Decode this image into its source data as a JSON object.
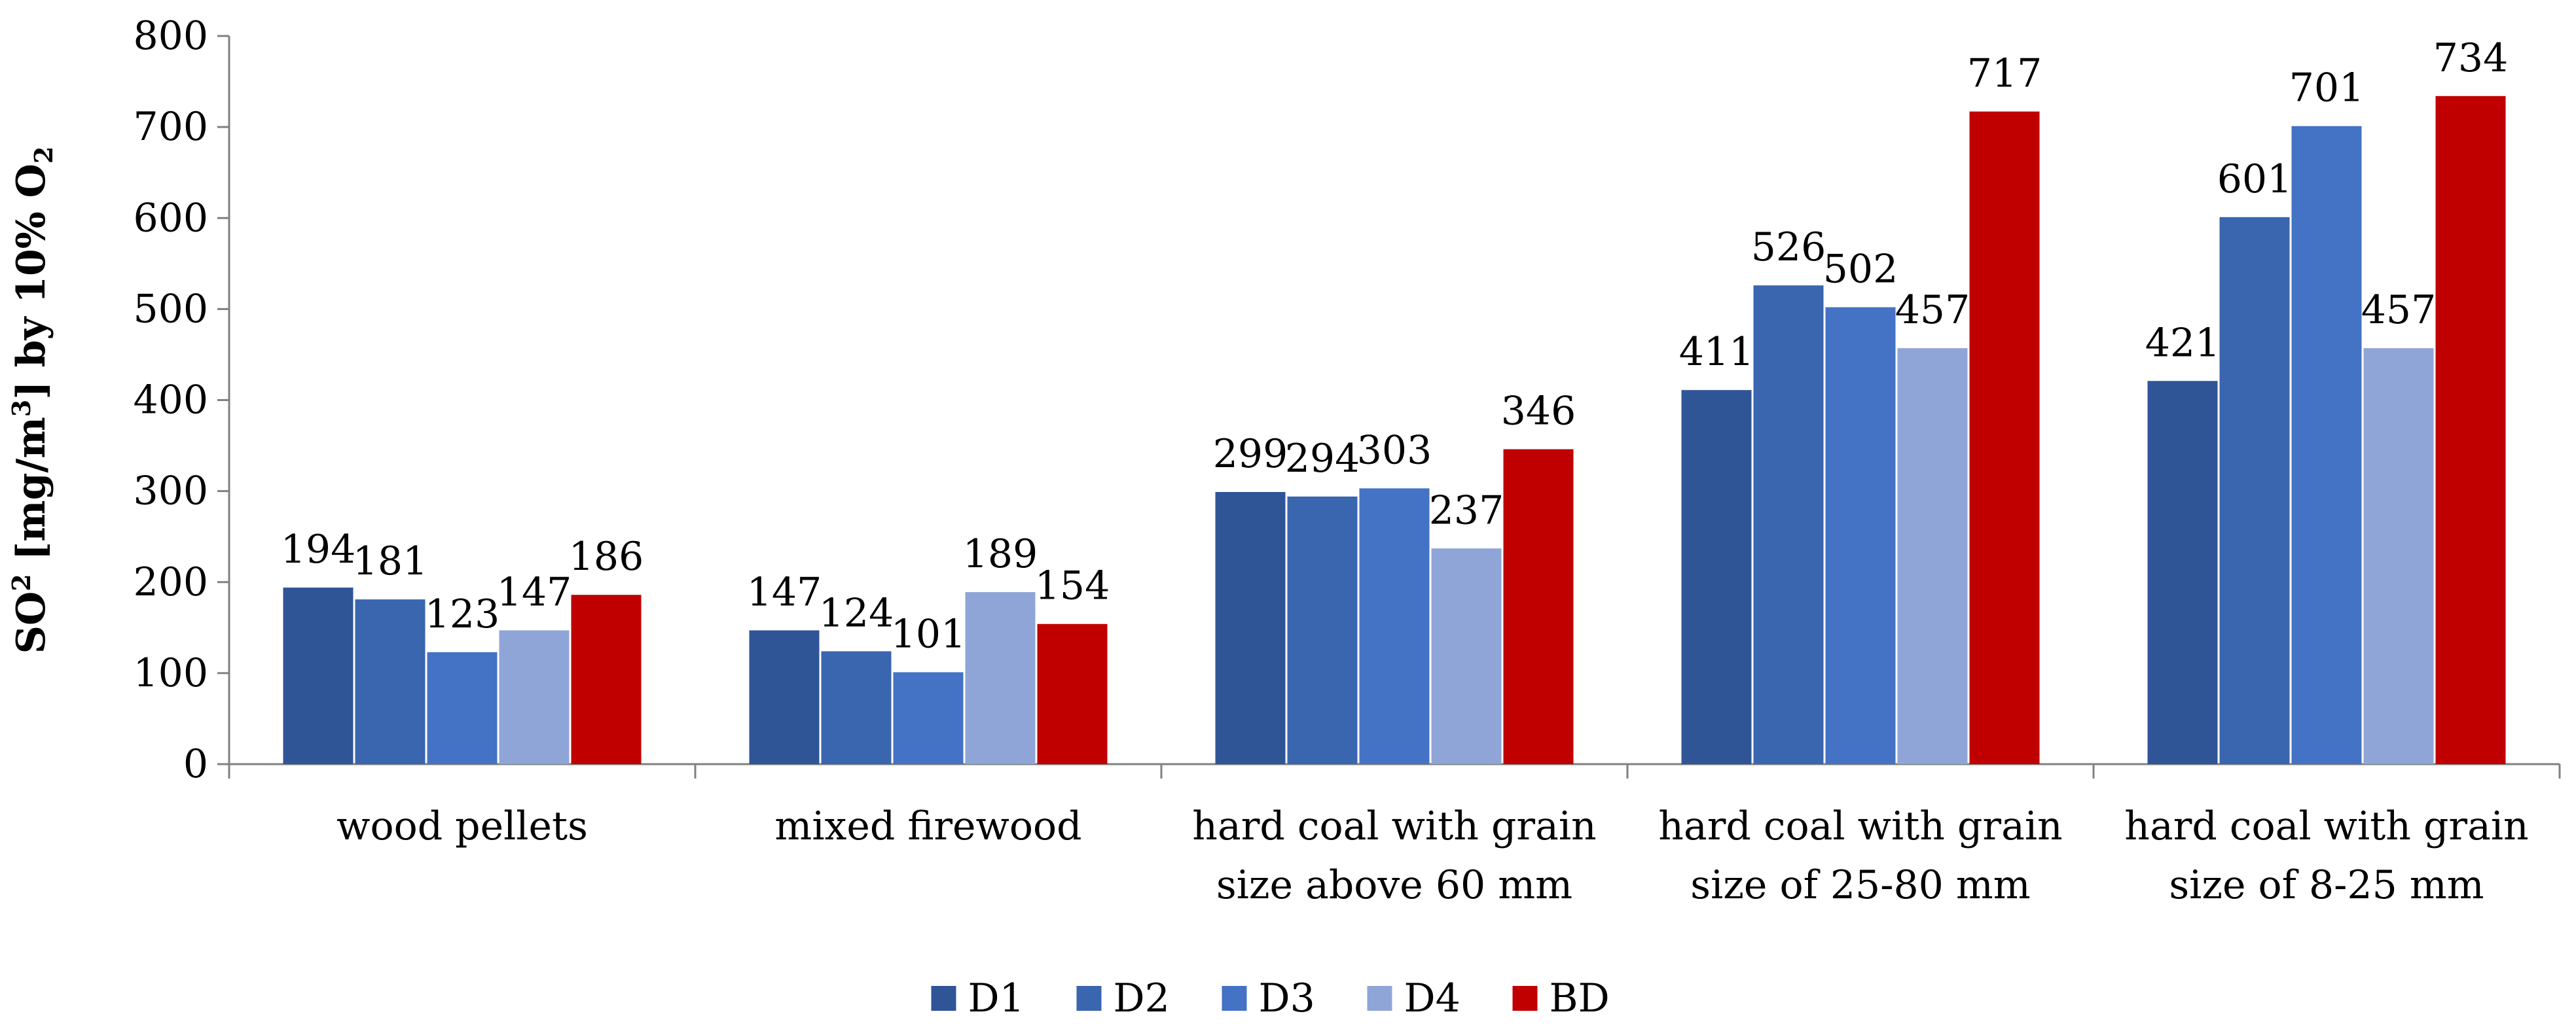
{
  "chart_data": {
    "type": "bar",
    "title": "",
    "ylabel": {
      "parts": [
        {
          "text": "SO",
          "style": "normal"
        },
        {
          "text": "2",
          "style": "super"
        },
        {
          "text": " [mg/m",
          "style": "normal"
        },
        {
          "text": "3",
          "style": "super"
        },
        {
          "text": "] by 10% O",
          "style": "normal"
        },
        {
          "text": "2",
          "style": "sub"
        }
      ]
    },
    "xlabel": "",
    "ylim": [
      0,
      800
    ],
    "yticks": [
      "0",
      "100",
      "200",
      "300",
      "400",
      "500",
      "600",
      "700",
      "800"
    ],
    "categories": [
      [
        "wood pellets"
      ],
      [
        "mixed firewood"
      ],
      [
        "hard coal with grain",
        "size above 60 mm"
      ],
      [
        "hard coal with grain",
        "size of 25-80 mm"
      ],
      [
        "hard coal with grain",
        "size of 8-25 mm"
      ]
    ],
    "series": [
      {
        "name": "D1",
        "color": "#2F5597",
        "values": [
          194,
          147,
          299,
          411,
          421
        ]
      },
      {
        "name": "D2",
        "color": "#3A65AF",
        "values": [
          181,
          124,
          294,
          526,
          601
        ]
      },
      {
        "name": "D3",
        "color": "#4472C4",
        "values": [
          123,
          101,
          303,
          502,
          701
        ]
      },
      {
        "name": "D4",
        "color": "#8FA5D7",
        "values": [
          147,
          189,
          237,
          457,
          457
        ]
      },
      {
        "name": "BD",
        "color": "#C00000",
        "values": [
          186,
          154,
          346,
          717,
          734
        ]
      }
    ],
    "grid": false,
    "legend_position": "bottom-center"
  }
}
